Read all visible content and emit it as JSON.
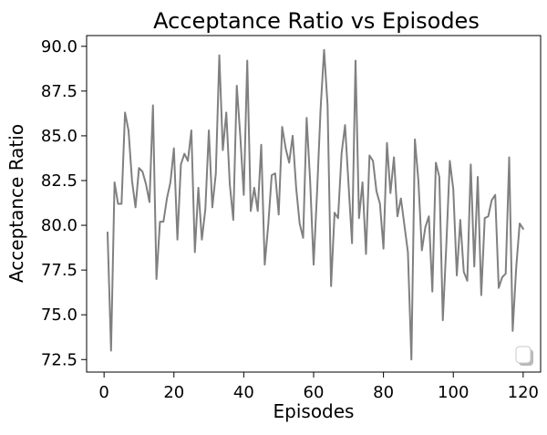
{
  "chart_data": {
    "type": "line",
    "title": "Acceptance Ratio vs Episodes",
    "xlabel": "Episodes",
    "ylabel": "Acceptance Ratio",
    "xlim": [
      -5,
      125
    ],
    "ylim": [
      71.8,
      90.6
    ],
    "xticks": [
      0,
      20,
      40,
      60,
      80,
      100,
      120
    ],
    "xtick_labels": [
      "0",
      "20",
      "40",
      "60",
      "80",
      "100",
      "120"
    ],
    "yticks": [
      72.5,
      75.0,
      77.5,
      80.0,
      82.5,
      85.0,
      87.5,
      90.0
    ],
    "ytick_labels": [
      "72.5",
      "75.0",
      "77.5",
      "80.0",
      "82.5",
      "85.0",
      "87.5",
      "90.0"
    ],
    "grid": false,
    "legend": {
      "placement": "lower-right",
      "entries": []
    },
    "series": [
      {
        "color": "#808080",
        "x": [
          1,
          2,
          3,
          4,
          5,
          6,
          7,
          8,
          9,
          10,
          11,
          12,
          13,
          14,
          15,
          16,
          17,
          18,
          19,
          20,
          21,
          22,
          23,
          24,
          25,
          26,
          27,
          28,
          29,
          30,
          31,
          32,
          33,
          34,
          35,
          36,
          37,
          38,
          39,
          40,
          41,
          42,
          43,
          44,
          45,
          46,
          47,
          48,
          49,
          50,
          51,
          52,
          53,
          54,
          55,
          56,
          57,
          58,
          59,
          60,
          61,
          62,
          63,
          64,
          65,
          66,
          67,
          68,
          69,
          70,
          71,
          72,
          73,
          74,
          75,
          76,
          77,
          78,
          79,
          80,
          81,
          82,
          83,
          84,
          85,
          86,
          87,
          88,
          89,
          90,
          91,
          92,
          93,
          94,
          95,
          96,
          97,
          98,
          99,
          100,
          101,
          102,
          103,
          104,
          105,
          106,
          107,
          108,
          109,
          110,
          111,
          112,
          113,
          114,
          115,
          116,
          117,
          118,
          119,
          120
        ],
        "y": [
          79.6,
          73.0,
          82.4,
          81.2,
          81.2,
          86.3,
          85.3,
          82.5,
          81.0,
          83.2,
          83.0,
          82.3,
          81.3,
          86.7,
          77.0,
          80.2,
          80.2,
          81.5,
          82.4,
          84.3,
          79.2,
          83.4,
          84.0,
          83.6,
          85.3,
          78.5,
          82.1,
          79.2,
          80.9,
          85.3,
          81.0,
          82.9,
          89.5,
          84.2,
          86.3,
          82.3,
          80.3,
          87.8,
          85.0,
          81.7,
          89.2,
          80.8,
          82.1,
          80.8,
          84.5,
          77.8,
          80.0,
          82.8,
          82.9,
          80.6,
          85.5,
          84.3,
          83.5,
          85.0,
          82.1,
          80.1,
          79.3,
          86.0,
          82.5,
          77.8,
          81.9,
          86.5,
          89.8,
          86.7,
          76.6,
          80.7,
          80.4,
          84.0,
          85.6,
          82.3,
          79.0,
          89.2,
          80.4,
          82.4,
          78.4,
          83.9,
          83.6,
          81.9,
          81.2,
          78.7,
          84.6,
          81.8,
          83.8,
          80.5,
          81.5,
          80.0,
          78.5,
          72.5,
          84.8,
          82.5,
          78.6,
          79.9,
          80.5,
          76.3,
          83.5,
          82.7,
          74.7,
          78.9,
          83.6,
          82.0,
          77.2,
          80.3,
          77.4,
          76.9,
          83.4,
          77.7,
          82.7,
          76.1,
          80.4,
          80.5,
          81.4,
          81.7,
          76.5,
          77.1,
          77.3,
          83.8,
          74.1,
          77.6,
          80.1,
          79.8
        ]
      }
    ]
  }
}
